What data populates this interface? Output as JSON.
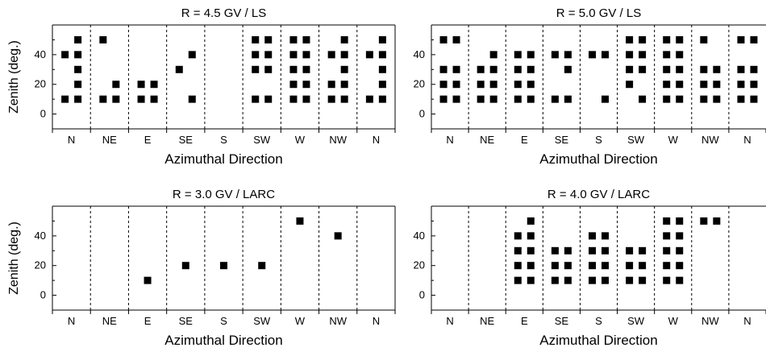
{
  "chart_data": [
    {
      "type": "scatter",
      "title": "R = 4.5 GV / LS",
      "xlabel": "Azimuthal Direction",
      "ylabel": "Zenith (deg.)",
      "categories": [
        "N",
        "NE",
        "E",
        "SE",
        "S",
        "SW",
        "W",
        "NW",
        "N"
      ],
      "yticks": [
        0,
        20,
        40
      ],
      "ylim": [
        -10,
        60
      ],
      "points": [
        [
          0,
          -1,
          40
        ],
        [
          0,
          -1,
          10
        ],
        [
          0,
          1,
          50
        ],
        [
          0,
          1,
          40
        ],
        [
          0,
          1,
          30
        ],
        [
          0,
          1,
          20
        ],
        [
          0,
          1,
          10
        ],
        [
          1,
          -1,
          50
        ],
        [
          1,
          -1,
          10
        ],
        [
          1,
          1,
          20
        ],
        [
          1,
          1,
          10
        ],
        [
          2,
          -1,
          20
        ],
        [
          2,
          -1,
          10
        ],
        [
          2,
          1,
          20
        ],
        [
          2,
          1,
          10
        ],
        [
          3,
          -1,
          30
        ],
        [
          3,
          1,
          40
        ],
        [
          3,
          1,
          10
        ],
        [
          5,
          -1,
          50
        ],
        [
          5,
          -1,
          40
        ],
        [
          5,
          -1,
          30
        ],
        [
          5,
          -1,
          10
        ],
        [
          5,
          1,
          50
        ],
        [
          5,
          1,
          40
        ],
        [
          5,
          1,
          30
        ],
        [
          5,
          1,
          10
        ],
        [
          6,
          -1,
          50
        ],
        [
          6,
          -1,
          40
        ],
        [
          6,
          -1,
          30
        ],
        [
          6,
          -1,
          20
        ],
        [
          6,
          -1,
          10
        ],
        [
          6,
          1,
          50
        ],
        [
          6,
          1,
          40
        ],
        [
          6,
          1,
          30
        ],
        [
          6,
          1,
          20
        ],
        [
          6,
          1,
          10
        ],
        [
          7,
          -1,
          40
        ],
        [
          7,
          -1,
          20
        ],
        [
          7,
          -1,
          10
        ],
        [
          7,
          1,
          50
        ],
        [
          7,
          1,
          40
        ],
        [
          7,
          1,
          30
        ],
        [
          7,
          1,
          20
        ],
        [
          7,
          1,
          10
        ],
        [
          8,
          -1,
          40
        ],
        [
          8,
          -1,
          10
        ],
        [
          8,
          1,
          50
        ],
        [
          8,
          1,
          40
        ],
        [
          8,
          1,
          30
        ],
        [
          8,
          1,
          20
        ],
        [
          8,
          1,
          10
        ]
      ]
    },
    {
      "type": "scatter",
      "title": "R = 5.0 GV / LS",
      "xlabel": "Azimuthal Direction",
      "ylabel": "",
      "categories": [
        "N",
        "NE",
        "E",
        "SE",
        "S",
        "SW",
        "W",
        "NW",
        "N"
      ],
      "yticks": [
        0,
        20,
        40
      ],
      "ylim": [
        -10,
        60
      ],
      "points": [
        [
          0,
          -1,
          50
        ],
        [
          0,
          -1,
          30
        ],
        [
          0,
          -1,
          20
        ],
        [
          0,
          -1,
          10
        ],
        [
          0,
          1,
          50
        ],
        [
          0,
          1,
          30
        ],
        [
          0,
          1,
          20
        ],
        [
          0,
          1,
          10
        ],
        [
          1,
          -1,
          30
        ],
        [
          1,
          -1,
          20
        ],
        [
          1,
          -1,
          10
        ],
        [
          1,
          1,
          40
        ],
        [
          1,
          1,
          30
        ],
        [
          1,
          1,
          20
        ],
        [
          1,
          1,
          10
        ],
        [
          2,
          -1,
          40
        ],
        [
          2,
          -1,
          30
        ],
        [
          2,
          -1,
          20
        ],
        [
          2,
          -1,
          10
        ],
        [
          2,
          1,
          40
        ],
        [
          2,
          1,
          30
        ],
        [
          2,
          1,
          20
        ],
        [
          2,
          1,
          10
        ],
        [
          3,
          -1,
          40
        ],
        [
          3,
          -1,
          10
        ],
        [
          3,
          1,
          40
        ],
        [
          3,
          1,
          30
        ],
        [
          3,
          1,
          10
        ],
        [
          4,
          -1,
          40
        ],
        [
          4,
          1,
          40
        ],
        [
          4,
          1,
          10
        ],
        [
          5,
          -1,
          50
        ],
        [
          5,
          -1,
          40
        ],
        [
          5,
          -1,
          30
        ],
        [
          5,
          -1,
          20
        ],
        [
          5,
          1,
          50
        ],
        [
          5,
          1,
          40
        ],
        [
          5,
          1,
          30
        ],
        [
          5,
          1,
          10
        ],
        [
          6,
          -1,
          50
        ],
        [
          6,
          -1,
          40
        ],
        [
          6,
          -1,
          30
        ],
        [
          6,
          -1,
          20
        ],
        [
          6,
          -1,
          10
        ],
        [
          6,
          1,
          50
        ],
        [
          6,
          1,
          40
        ],
        [
          6,
          1,
          30
        ],
        [
          6,
          1,
          20
        ],
        [
          6,
          1,
          10
        ],
        [
          7,
          -1,
          50
        ],
        [
          7,
          -1,
          30
        ],
        [
          7,
          -1,
          20
        ],
        [
          7,
          -1,
          10
        ],
        [
          7,
          1,
          30
        ],
        [
          7,
          1,
          20
        ],
        [
          7,
          1,
          10
        ],
        [
          8,
          -1,
          50
        ],
        [
          8,
          -1,
          30
        ],
        [
          8,
          -1,
          20
        ],
        [
          8,
          -1,
          10
        ],
        [
          8,
          1,
          50
        ],
        [
          8,
          1,
          30
        ],
        [
          8,
          1,
          20
        ],
        [
          8,
          1,
          10
        ]
      ]
    },
    {
      "type": "scatter",
      "title": "R = 3.0 GV / LARC",
      "xlabel": "Azimuthal Direction",
      "ylabel": "Zenith (deg.)",
      "categories": [
        "N",
        "NE",
        "E",
        "SE",
        "S",
        "SW",
        "W",
        "NW",
        "N"
      ],
      "yticks": [
        0,
        20,
        40
      ],
      "ylim": [
        -10,
        60
      ],
      "points": [
        [
          2,
          0,
          10
        ],
        [
          3,
          0,
          20
        ],
        [
          4,
          0,
          20
        ],
        [
          5,
          0,
          20
        ],
        [
          6,
          0,
          50
        ],
        [
          7,
          0,
          40
        ]
      ]
    },
    {
      "type": "scatter",
      "title": "R = 4.0 GV / LARC",
      "xlabel": "Azimuthal Direction",
      "ylabel": "",
      "categories": [
        "N",
        "NE",
        "E",
        "SE",
        "S",
        "SW",
        "W",
        "NW",
        "N"
      ],
      "yticks": [
        0,
        20,
        40
      ],
      "ylim": [
        -10,
        60
      ],
      "points": [
        [
          2,
          -1,
          40
        ],
        [
          2,
          -1,
          30
        ],
        [
          2,
          -1,
          20
        ],
        [
          2,
          -1,
          10
        ],
        [
          2,
          1,
          50
        ],
        [
          2,
          1,
          40
        ],
        [
          2,
          1,
          30
        ],
        [
          2,
          1,
          20
        ],
        [
          2,
          1,
          10
        ],
        [
          3,
          -1,
          30
        ],
        [
          3,
          -1,
          20
        ],
        [
          3,
          -1,
          10
        ],
        [
          3,
          1,
          30
        ],
        [
          3,
          1,
          20
        ],
        [
          3,
          1,
          10
        ],
        [
          4,
          -1,
          40
        ],
        [
          4,
          -1,
          30
        ],
        [
          4,
          -1,
          20
        ],
        [
          4,
          -1,
          10
        ],
        [
          4,
          1,
          40
        ],
        [
          4,
          1,
          30
        ],
        [
          4,
          1,
          20
        ],
        [
          4,
          1,
          10
        ],
        [
          5,
          -1,
          30
        ],
        [
          5,
          -1,
          20
        ],
        [
          5,
          -1,
          10
        ],
        [
          5,
          1,
          30
        ],
        [
          5,
          1,
          20
        ],
        [
          5,
          1,
          10
        ],
        [
          6,
          -1,
          50
        ],
        [
          6,
          -1,
          40
        ],
        [
          6,
          -1,
          30
        ],
        [
          6,
          -1,
          20
        ],
        [
          6,
          -1,
          10
        ],
        [
          6,
          1,
          50
        ],
        [
          6,
          1,
          40
        ],
        [
          6,
          1,
          30
        ],
        [
          6,
          1,
          20
        ],
        [
          6,
          1,
          10
        ],
        [
          7,
          -1,
          50
        ],
        [
          7,
          1,
          50
        ]
      ]
    }
  ]
}
